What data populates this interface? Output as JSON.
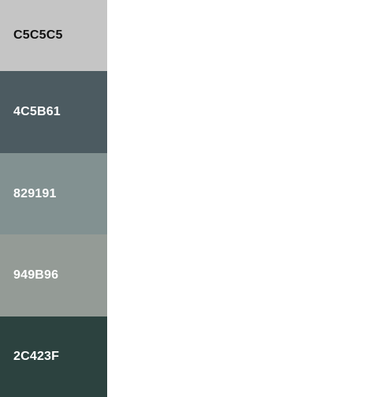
{
  "palette": {
    "swatches": [
      {
        "hex": "C5C5C5",
        "color": "#C5C5C5",
        "text_color": "#111111"
      },
      {
        "hex": "4C5B61",
        "color": "#4C5B61",
        "text_color": "#FFFFFF"
      },
      {
        "hex": "829191",
        "color": "#829191",
        "text_color": "#FFFFFF"
      },
      {
        "hex": "949B96",
        "color": "#949B96",
        "text_color": "#FFFFFF"
      },
      {
        "hex": "2C423F",
        "color": "#2C423F",
        "text_color": "#FFFFFF"
      }
    ]
  }
}
